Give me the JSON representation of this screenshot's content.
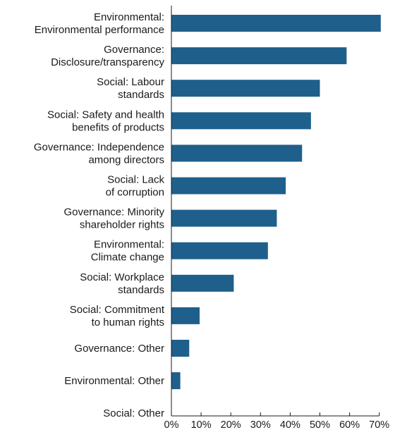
{
  "chart_data": {
    "type": "bar",
    "orientation": "horizontal",
    "categories": [
      [
        "Environmental:",
        "Environmental performance"
      ],
      [
        "Governance:",
        "Disclosure/transparency"
      ],
      [
        "Social: Labour",
        "standards"
      ],
      [
        "Social: Safety and health",
        "benefits of products"
      ],
      [
        "Governance: Independence",
        "among directors"
      ],
      [
        "Social: Lack",
        "of corruption"
      ],
      [
        "Governance: Minority",
        "shareholder rights"
      ],
      [
        "Environmental:",
        "Climate change"
      ],
      [
        "Social: Workplace",
        "standards"
      ],
      [
        "Social: Commitment",
        "to human rights"
      ],
      [
        "Governance: Other"
      ],
      [
        "Environmental: Other"
      ],
      [
        "Social: Other"
      ]
    ],
    "values": [
      70.5,
      59,
      50,
      47,
      44,
      38.5,
      35.5,
      32.5,
      21,
      9.5,
      6,
      3,
      0
    ],
    "xlim": [
      0,
      70
    ],
    "xticks": [
      "0%",
      "10%",
      "20%",
      "30%",
      "40%",
      "50%",
      "60%",
      "70%"
    ],
    "grid": false,
    "legend": "none",
    "bar_color": "#1f5f8b"
  }
}
